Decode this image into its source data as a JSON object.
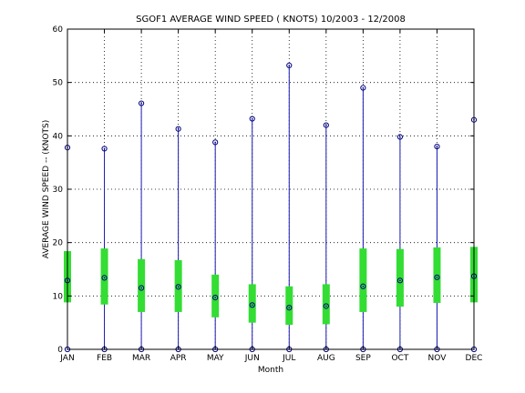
{
  "chart_data": {
    "type": "box",
    "title": "SGOF1  AVERAGE WIND SPEED ( KNOTS) 10/2003 - 12/2008",
    "xlabel": "Month",
    "ylabel": "AVERAGE WIND SPEED -- (KNOTS)",
    "ylim": [
      0,
      60
    ],
    "yticks": [
      "0",
      "10",
      "20",
      "30",
      "40",
      "50",
      "60"
    ],
    "grid": true,
    "categories": [
      "JAN",
      "FEB",
      "MAR",
      "APR",
      "MAY",
      "JUN",
      "JUL",
      "AUG",
      "SEP",
      "OCT",
      "NOV",
      "DEC"
    ],
    "min": [
      0,
      0,
      0,
      0,
      0,
      0,
      0,
      0,
      0,
      0,
      0,
      0
    ],
    "max": [
      37.8,
      37.6,
      46.1,
      41.3,
      38.8,
      43.2,
      53.2,
      42.0,
      49.0,
      39.8,
      38.0,
      43.0
    ],
    "q1": [
      8.8,
      8.4,
      7.0,
      7.0,
      6.0,
      5.0,
      4.6,
      4.7,
      7.0,
      8.0,
      8.7,
      8.8
    ],
    "q3": [
      18.4,
      18.9,
      16.9,
      16.7,
      14.0,
      12.2,
      11.8,
      12.2,
      18.9,
      18.8,
      19.1,
      19.2
    ],
    "median": [
      12.9,
      13.4,
      11.5,
      11.7,
      9.7,
      8.3,
      7.8,
      8.1,
      11.8,
      12.9,
      13.5,
      13.7
    ],
    "colors": {
      "whisker": "#1a1ab3",
      "box": "#33dd33",
      "marker": "#000080"
    }
  }
}
